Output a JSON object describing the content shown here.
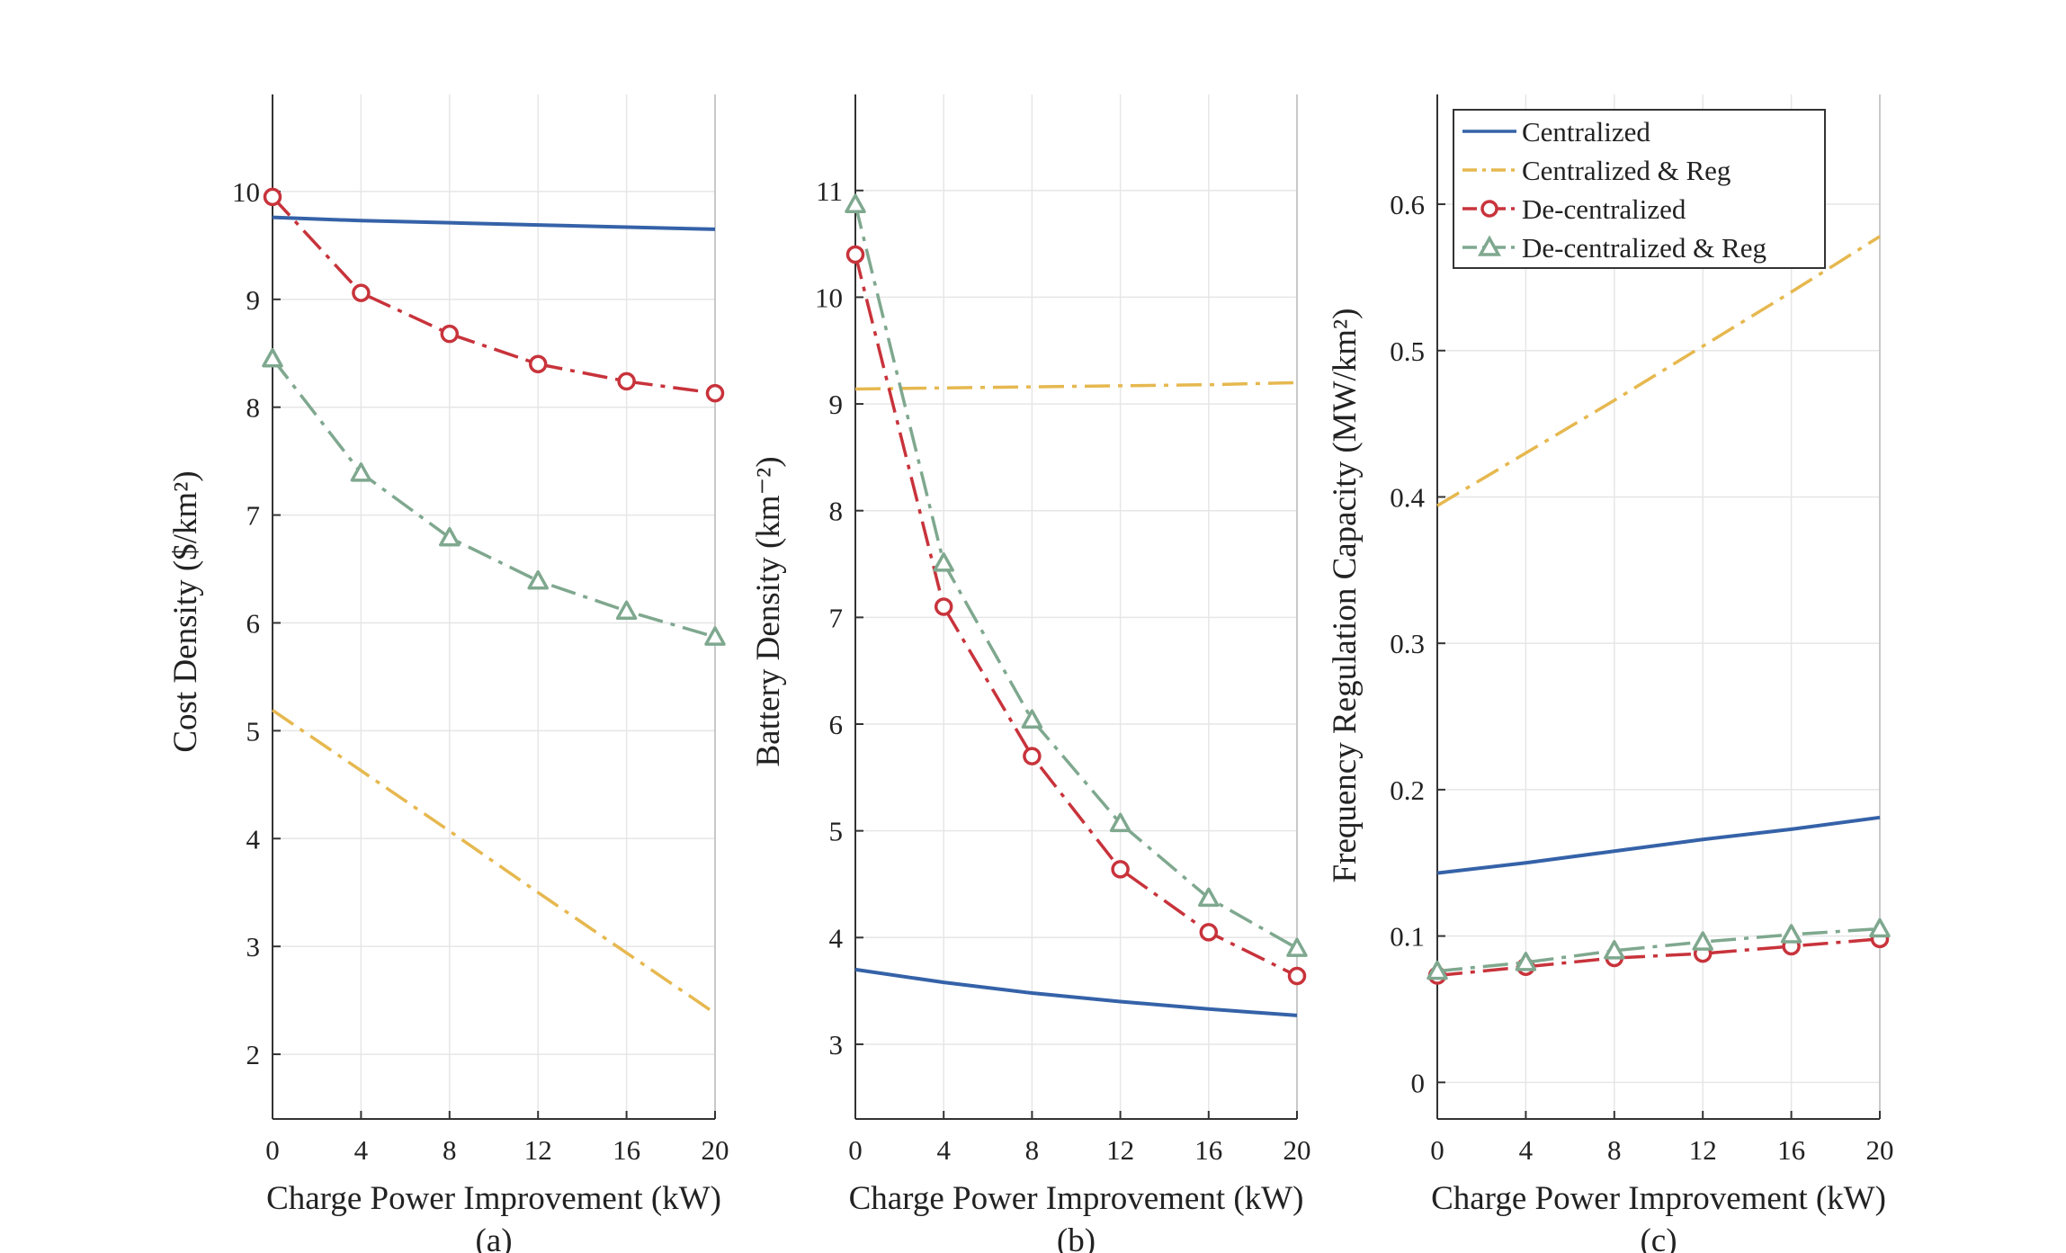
{
  "colors": {
    "centralized": "#3562a8",
    "centralized_reg": "#e6b84f",
    "decentralized": "#c8333b",
    "decentralized_reg": "#7fa88f"
  },
  "legend": {
    "items": [
      {
        "key": "centralized",
        "label": "Centralized"
      },
      {
        "key": "centralized_reg",
        "label": "Centralized & Reg"
      },
      {
        "key": "decentralized",
        "label": "De-centralized"
      },
      {
        "key": "decentralized_reg",
        "label": "De-centralized & Reg"
      }
    ]
  },
  "chart_data": [
    {
      "type": "line",
      "panel_label": "(a)",
      "xlabel": "Charge Power Improvement (kW)",
      "ylabel": "Cost Density ($/km²)",
      "xlim": [
        0,
        20
      ],
      "ylim": [
        1.4,
        10.9
      ],
      "xticks": [
        0,
        4,
        8,
        12,
        16,
        20
      ],
      "yticks": [
        2,
        3,
        4,
        5,
        6,
        7,
        8,
        9,
        10
      ],
      "grid": true,
      "x": [
        0,
        4,
        8,
        12,
        16,
        20
      ],
      "series": [
        {
          "name": "Centralized",
          "key": "centralized",
          "style": "solid",
          "marker": "none",
          "values": [
            9.76,
            9.73,
            9.71,
            9.69,
            9.67,
            9.65
          ]
        },
        {
          "name": "Centralized & Reg",
          "key": "centralized_reg",
          "style": "dashdot",
          "marker": "none",
          "values": [
            5.19,
            4.63,
            4.07,
            3.5,
            2.94,
            2.38
          ]
        },
        {
          "name": "De-centralized",
          "key": "decentralized",
          "style": "dashdot",
          "marker": "circle",
          "values": [
            9.95,
            9.06,
            8.68,
            8.4,
            8.24,
            8.13
          ]
        },
        {
          "name": "De-centralized & Reg",
          "key": "decentralized_reg",
          "style": "dashdot",
          "marker": "triangle",
          "values": [
            8.45,
            7.39,
            6.79,
            6.39,
            6.11,
            5.87
          ]
        }
      ]
    },
    {
      "type": "line",
      "panel_label": "(b)",
      "xlabel": "Charge Power Improvement (kW)",
      "ylabel": "Battery Density (km⁻²)",
      "xlim": [
        0,
        20
      ],
      "ylim": [
        2.3,
        11.9
      ],
      "xticks": [
        0,
        4,
        8,
        12,
        16,
        20
      ],
      "yticks": [
        3,
        4,
        5,
        6,
        7,
        8,
        9,
        10,
        11
      ],
      "grid": true,
      "x": [
        0,
        4,
        8,
        12,
        16,
        20
      ],
      "series": [
        {
          "name": "Centralized",
          "key": "centralized",
          "style": "solid",
          "marker": "none",
          "values": [
            3.7,
            3.58,
            3.48,
            3.4,
            3.33,
            3.27
          ]
        },
        {
          "name": "Centralized & Reg",
          "key": "centralized_reg",
          "style": "dashdot",
          "marker": "none",
          "values": [
            9.14,
            9.15,
            9.16,
            9.17,
            9.18,
            9.2
          ]
        },
        {
          "name": "De-centralized",
          "key": "decentralized",
          "style": "dashdot",
          "marker": "circle",
          "values": [
            10.4,
            7.1,
            5.7,
            4.64,
            4.05,
            3.64
          ]
        },
        {
          "name": "De-centralized & Reg",
          "key": "decentralized_reg",
          "style": "dashdot",
          "marker": "triangle",
          "values": [
            10.87,
            7.51,
            6.04,
            5.07,
            4.37,
            3.9
          ]
        }
      ]
    },
    {
      "type": "line",
      "panel_label": "(c)",
      "xlabel": "Charge Power Improvement (kW)",
      "ylabel": "Frequency Regulation Capacity (MW/km²)",
      "xlim": [
        0,
        20
      ],
      "ylim": [
        -0.025,
        0.675
      ],
      "xticks": [
        0,
        4,
        8,
        12,
        16,
        20
      ],
      "yticks": [
        0,
        0.1,
        0.2,
        0.3,
        0.4,
        0.5,
        0.6
      ],
      "grid": true,
      "legend_position": "top-left",
      "x": [
        0,
        4,
        8,
        12,
        16,
        20
      ],
      "series": [
        {
          "name": "Centralized",
          "key": "centralized",
          "style": "solid",
          "marker": "none",
          "values": [
            0.143,
            0.15,
            0.158,
            0.166,
            0.173,
            0.181
          ]
        },
        {
          "name": "Centralized & Reg",
          "key": "centralized_reg",
          "style": "dashdot",
          "marker": "none",
          "values": [
            0.394,
            0.43,
            0.466,
            0.503,
            0.54,
            0.578
          ]
        },
        {
          "name": "De-centralized",
          "key": "decentralized",
          "style": "dashdot",
          "marker": "circle",
          "values": [
            0.073,
            0.079,
            0.085,
            0.088,
            0.093,
            0.098
          ]
        },
        {
          "name": "De-centralized & Reg",
          "key": "decentralized_reg",
          "style": "dashdot",
          "marker": "triangle",
          "values": [
            0.076,
            0.082,
            0.09,
            0.096,
            0.101,
            0.105
          ]
        }
      ]
    }
  ]
}
